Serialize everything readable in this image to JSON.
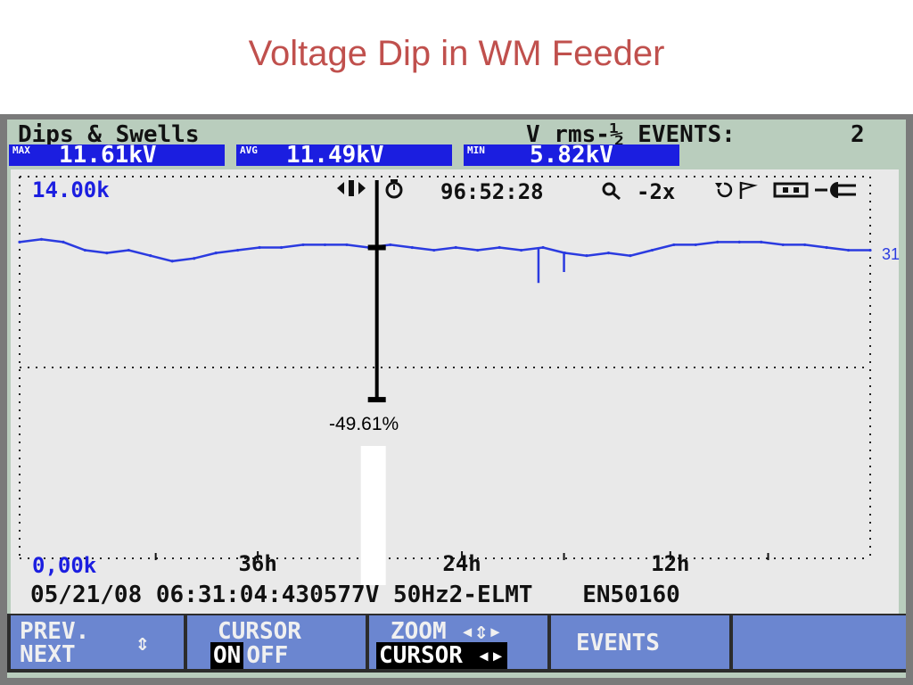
{
  "slide": {
    "title": "Voltage Dip in WM Feeder"
  },
  "header": {
    "title": "Dips & Swells",
    "mode": "V rms-½ EVENTS:",
    "event_count": "2",
    "stats": [
      {
        "label": "MAX",
        "value": "11.61kV"
      },
      {
        "label": "AVG",
        "value": "11.49kV"
      },
      {
        "label": "MIN",
        "value": "5.82kV"
      }
    ]
  },
  "plot": {
    "y_top_label": "14.00k",
    "y_bottom_label": "0,00k",
    "clock": "96:52:28",
    "zoom": "-2x",
    "right_marker": "31",
    "cursor_readout": "-49.61%",
    "icons": [
      "cursor-lr-icon",
      "clock-icon",
      "magnifier-icon",
      "rotate-icon",
      "flag-icon",
      "battery-icon",
      "plug-icon"
    ]
  },
  "status_bar": {
    "date": "05/21/08",
    "time": "06:31:04:430",
    "nominal_voltage": "577V",
    "frequency": "50Hz",
    "config": "2-ELMT",
    "standard": "EN50160"
  },
  "chart_data": {
    "type": "line",
    "x_tick_labels": [
      "36h",
      "24h",
      "12h"
    ],
    "ylim": [
      0,
      14
    ],
    "y_unit": "kV",
    "grid": true,
    "series": [
      {
        "values": [
          11.6,
          11.7,
          11.6,
          11.3,
          11.2,
          11.3,
          11.1,
          10.9,
          11.0,
          11.2,
          11.3,
          11.4,
          11.4,
          11.5,
          11.5,
          11.5,
          11.4,
          11.5,
          11.4,
          11.3,
          11.4,
          11.3,
          11.4,
          11.3,
          11.4,
          11.2,
          11.1,
          11.2,
          11.1,
          11.3,
          11.5,
          11.5,
          11.6,
          11.6,
          11.6,
          11.5,
          11.5,
          11.4,
          11.3,
          11.3
        ]
      }
    ],
    "dip_spikes": [
      {
        "position": 0.61,
        "value": 10.1
      },
      {
        "position": 0.64,
        "value": 10.5
      }
    ],
    "cursor": {
      "position": 0.42,
      "value_top": 11.4,
      "value_bottom": 5.82,
      "readout": "-49.61%"
    }
  },
  "function_keys": {
    "f1_line1": "PREV.",
    "f1_line2": "NEXT",
    "f1_arrow": "⇕",
    "f2_title": "CURSOR",
    "f2_on": "ON",
    "f2_off": "OFF",
    "f3_title": "ZOOM ◂⇕▸",
    "f3_sub": "CURSOR ◂▸",
    "f4_label": "EVENTS",
    "f5_label": ""
  },
  "colors": {
    "slide_title": "#c0504d",
    "header_bg": "#b9cdbd",
    "stat_bg": "#1b1ee0",
    "trace": "#2b3be0",
    "fkey_bg": "#6b86d0"
  }
}
